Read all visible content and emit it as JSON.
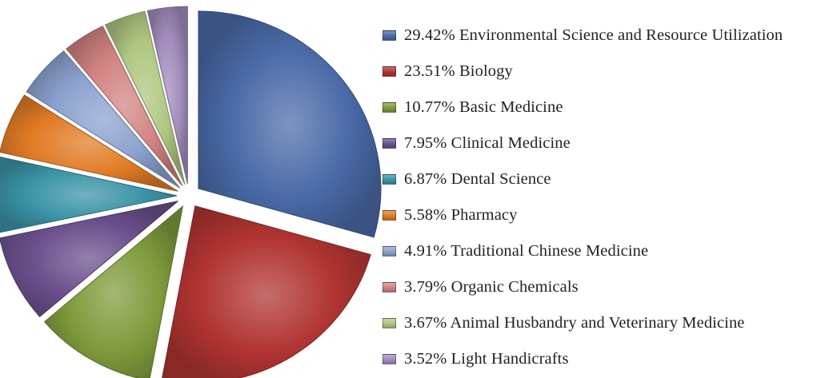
{
  "chart_data": {
    "type": "pie",
    "exploded": true,
    "legend_position": "right",
    "series": [
      {
        "label": "29.42% Environmental Science and Resource Utilization",
        "category": "Environmental Science and Resource Utilization",
        "value": 29.42,
        "color": "#4a6aa8"
      },
      {
        "label": "23.51% Biology",
        "category": "Biology",
        "value": 23.51,
        "color": "#b03432"
      },
      {
        "label": "10.77% Basic Medicine",
        "category": "Basic Medicine",
        "value": 10.77,
        "color": "#7f9b3c"
      },
      {
        "label": "7.95% Clinical Medicine",
        "category": "Clinical Medicine",
        "value": 7.95,
        "color": "#6a4f8c"
      },
      {
        "label": "6.87% Dental Science",
        "category": "Dental Science",
        "value": 6.87,
        "color": "#3a93a7"
      },
      {
        "label": "5.58% Pharmacy",
        "category": "Pharmacy",
        "value": 5.58,
        "color": "#e07b25"
      },
      {
        "label": "4.91% Traditional Chinese Medicine",
        "category": "Traditional Chinese Medicine",
        "value": 4.91,
        "color": "#8ba1ce"
      },
      {
        "label": "3.79% Organic Chemicals",
        "category": "Organic Chemicals",
        "value": 3.79,
        "color": "#d18381"
      },
      {
        "label": "3.67% Animal Husbandry and Veterinary Medicine",
        "category": "Animal Husbandry and Veterinary Medicine",
        "value": 3.67,
        "color": "#aec680"
      },
      {
        "label": "3.52% Light Handicrafts",
        "category": "Light Handicrafts",
        "value": 3.52,
        "color": "#a28cbc"
      }
    ]
  }
}
